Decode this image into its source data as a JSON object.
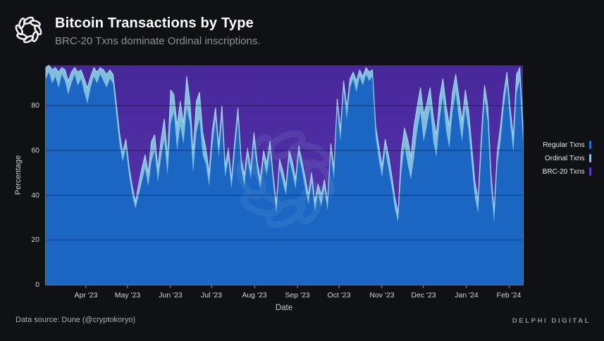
{
  "header": {
    "title": "Bitcoin Transactions by Type",
    "subtitle": "BRC-20 Txns dominate Ordinal inscriptions."
  },
  "legend": [
    {
      "label": "Regular Txns",
      "color": "#1d72d2"
    },
    {
      "label": "Ordinal Txns",
      "color": "#85c6e8"
    },
    {
      "label": "BRC-20 Txns",
      "color": "#6236d9"
    }
  ],
  "footer": {
    "source": "Data source: Dune (@cryptokoryo)",
    "brand": "DELPHI DIGITAL"
  },
  "chart_data": {
    "type": "area",
    "stacked": true,
    "title": "Bitcoin Transactions by Type",
    "xlabel": "Date",
    "ylabel": "Percentage",
    "ylim": [
      0,
      98
    ],
    "grid": "horizontal",
    "legend_position": "right",
    "y_ticks": [
      0,
      20,
      40,
      60,
      80
    ],
    "x_tick_labels": [
      "Apr '23",
      "May '23",
      "Jun '23",
      "Jul '23",
      "Aug '23",
      "Sep '23",
      "Oct '23",
      "Nov '23",
      "Dec '23",
      "Jan '24",
      "Feb '24"
    ],
    "x_tick_days": [
      29,
      59,
      90,
      120,
      151,
      182,
      212,
      243,
      273,
      304,
      335
    ],
    "x_domain_days": 345,
    "x_domain_note": "daily data, approx Mar 2023 through early Feb 2024",
    "series_order_bottom_to_top": [
      "Regular Txns",
      "Ordinal Txns",
      "BRC-20 Txns"
    ],
    "colors": {
      "regular_area": "#1b66c3",
      "ordinal_area": "#7fbedd",
      "ordinal_edge": "#a3d4ec",
      "brc20_area_top": "#47289a",
      "brc20_area_bottom": "#5b37b4",
      "gridline": "rgba(5,10,28,0.5)",
      "background": "#101114"
    },
    "points_format": "[regular_pct, ordinal_pct]; BRC-20 pct = remainder to 100 (plot clipped at y=98)",
    "points": [
      [
        92,
        5
      ],
      [
        95,
        3
      ],
      [
        90,
        6
      ],
      [
        93,
        4
      ],
      [
        88,
        7
      ],
      [
        94,
        3
      ],
      [
        91,
        5
      ],
      [
        85,
        6
      ],
      [
        90,
        5
      ],
      [
        94,
        3
      ],
      [
        89,
        6
      ],
      [
        92,
        4
      ],
      [
        86,
        6
      ],
      [
        81,
        7
      ],
      [
        88,
        5
      ],
      [
        93,
        4
      ],
      [
        90,
        5
      ],
      [
        94,
        3
      ],
      [
        91,
        5
      ],
      [
        88,
        6
      ],
      [
        92,
        4
      ],
      [
        90,
        4
      ],
      [
        76,
        5
      ],
      [
        63,
        5
      ],
      [
        55,
        4
      ],
      [
        61,
        4
      ],
      [
        49,
        4
      ],
      [
        40,
        4
      ],
      [
        34,
        3
      ],
      [
        40,
        5
      ],
      [
        46,
        6
      ],
      [
        52,
        6
      ],
      [
        44,
        6
      ],
      [
        55,
        9
      ],
      [
        60,
        7
      ],
      [
        46,
        6
      ],
      [
        57,
        8
      ],
      [
        65,
        9
      ],
      [
        49,
        8
      ],
      [
        72,
        15
      ],
      [
        77,
        8
      ],
      [
        60,
        11
      ],
      [
        71,
        11
      ],
      [
        63,
        9
      ],
      [
        79,
        14
      ],
      [
        72,
        10
      ],
      [
        50,
        9
      ],
      [
        68,
        14
      ],
      [
        74,
        12
      ],
      [
        58,
        10
      ],
      [
        54,
        7
      ],
      [
        44,
        6
      ],
      [
        62,
        7
      ],
      [
        74,
        5
      ],
      [
        57,
        5
      ],
      [
        74,
        6
      ],
      [
        48,
        5
      ],
      [
        56,
        5
      ],
      [
        43,
        4
      ],
      [
        59,
        5
      ],
      [
        74,
        5
      ],
      [
        52,
        4
      ],
      [
        44,
        5
      ],
      [
        57,
        4
      ],
      [
        47,
        4
      ],
      [
        63,
        5
      ],
      [
        51,
        4
      ],
      [
        43,
        4
      ],
      [
        56,
        4
      ],
      [
        49,
        5
      ],
      [
        60,
        4
      ],
      [
        45,
        4
      ],
      [
        32,
        4
      ],
      [
        52,
        4
      ],
      [
        46,
        5
      ],
      [
        40,
        4
      ],
      [
        56,
        4
      ],
      [
        50,
        5
      ],
      [
        43,
        4
      ],
      [
        58,
        4
      ],
      [
        51,
        4
      ],
      [
        43,
        5
      ],
      [
        36,
        4
      ],
      [
        46,
        4
      ],
      [
        33,
        4
      ],
      [
        41,
        4
      ],
      [
        35,
        5
      ],
      [
        43,
        4
      ],
      [
        33,
        4
      ],
      [
        59,
        4
      ],
      [
        47,
        5
      ],
      [
        79,
        4
      ],
      [
        64,
        5
      ],
      [
        87,
        4
      ],
      [
        74,
        5
      ],
      [
        88,
        4
      ],
      [
        92,
        3
      ],
      [
        86,
        5
      ],
      [
        93,
        3
      ],
      [
        89,
        4
      ],
      [
        94,
        3
      ],
      [
        91,
        4
      ],
      [
        93,
        3
      ],
      [
        66,
        5
      ],
      [
        56,
        6
      ],
      [
        48,
        5
      ],
      [
        60,
        5
      ],
      [
        52,
        6
      ],
      [
        44,
        5
      ],
      [
        34,
        5
      ],
      [
        28,
        4
      ],
      [
        50,
        9
      ],
      [
        62,
        8
      ],
      [
        54,
        11
      ],
      [
        47,
        10
      ],
      [
        57,
        14
      ],
      [
        69,
        11
      ],
      [
        77,
        11
      ],
      [
        64,
        12
      ],
      [
        71,
        10
      ],
      [
        79,
        9
      ],
      [
        64,
        11
      ],
      [
        57,
        10
      ],
      [
        74,
        10
      ],
      [
        84,
        8
      ],
      [
        69,
        11
      ],
      [
        61,
        10
      ],
      [
        77,
        9
      ],
      [
        86,
        8
      ],
      [
        74,
        10
      ],
      [
        64,
        9
      ],
      [
        79,
        8
      ],
      [
        69,
        9
      ],
      [
        54,
        8
      ],
      [
        39,
        7
      ],
      [
        32,
        6
      ],
      [
        59,
        7
      ],
      [
        83,
        6
      ],
      [
        73,
        7
      ],
      [
        44,
        6
      ],
      [
        28,
        5
      ],
      [
        54,
        6
      ],
      [
        64,
        7
      ],
      [
        79,
        6
      ],
      [
        90,
        5
      ],
      [
        73,
        6
      ],
      [
        59,
        7
      ],
      [
        86,
        8
      ],
      [
        91,
        6
      ],
      [
        64,
        8
      ]
    ]
  }
}
